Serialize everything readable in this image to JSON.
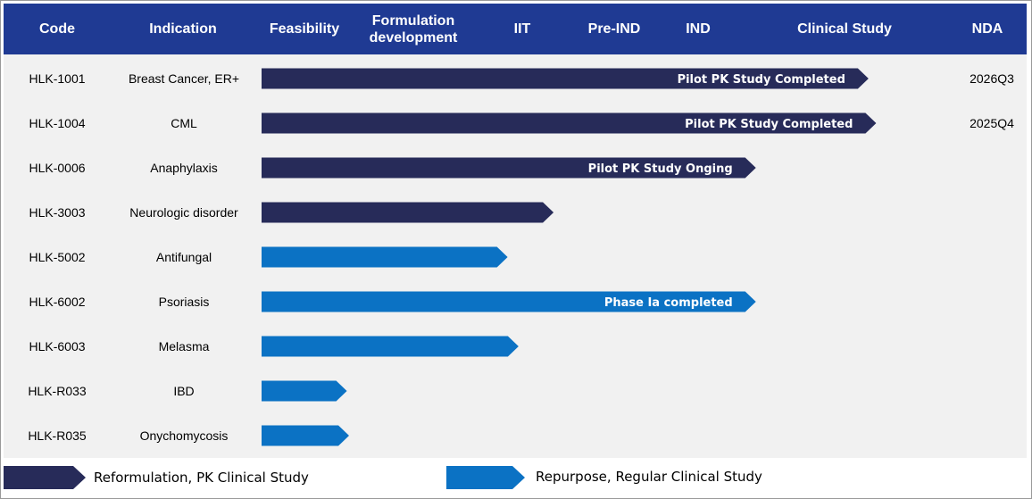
{
  "columns": [
    {
      "label": "Code"
    },
    {
      "label": "Indication"
    },
    {
      "label": "Feasibility"
    },
    {
      "label": "Formulation\ndevelopment"
    },
    {
      "label": "IIT"
    },
    {
      "label": "Pre-IND"
    },
    {
      "label": "IND"
    },
    {
      "label": "Clinical Study"
    },
    {
      "label": "NDA"
    }
  ],
  "rows": [
    {
      "code": "HLK-1001",
      "indication": "Breast Cancer, ER+",
      "nda": "2026Q3"
    },
    {
      "code": "HLK-1004",
      "indication": "CML",
      "nda": "2025Q4"
    },
    {
      "code": "HLK-0006",
      "indication": "Anaphylaxis",
      "nda": ""
    },
    {
      "code": "HLK-3003",
      "indication": "Neurologic disorder",
      "nda": ""
    },
    {
      "code": "HLK-5002",
      "indication": "Antifungal",
      "nda": ""
    },
    {
      "code": "HLK-6002",
      "indication": "Psoriasis",
      "nda": ""
    },
    {
      "code": "HLK-6003",
      "indication": "Melasma",
      "nda": ""
    },
    {
      "code": "HLK-R033",
      "indication": "IBD",
      "nda": ""
    },
    {
      "code": "HLK-R035",
      "indication": "Onychomycosis",
      "nda": ""
    }
  ],
  "legend": [
    {
      "label": "Reformulation, PK Clinical Study",
      "color": "#272b59"
    },
    {
      "label": "Repurpose, Regular Clinical Study",
      "color": "#0b72c4"
    }
  ],
  "chart_data": {
    "type": "bar",
    "orientation": "horizontal",
    "title": "",
    "stage_axis": [
      "Feasibility",
      "Formulation development",
      "IIT",
      "Pre-IND",
      "IND",
      "Clinical Study",
      "NDA"
    ],
    "series": [
      {
        "name": "Reformulation, PK Clinical Study",
        "color": "#272b59",
        "items": [
          {
            "code": "HLK-1001",
            "progress": 5.55,
            "label": "Pilot PK Study Completed"
          },
          {
            "code": "HLK-1004",
            "progress": 5.62,
            "label": "Pilot PK Study Completed"
          },
          {
            "code": "HLK-0006",
            "progress": 4.52,
            "label": "Pilot PK Study Onging"
          },
          {
            "code": "HLK-3003",
            "progress": 2.67,
            "label": ""
          }
        ]
      },
      {
        "name": "Repurpose, Regular Clinical Study",
        "color": "#0b72c4",
        "items": [
          {
            "code": "HLK-5002",
            "progress": 2.25,
            "label": ""
          },
          {
            "code": "HLK-6002",
            "progress": 4.52,
            "label": "Phase Ia completed"
          },
          {
            "code": "HLK-6003",
            "progress": 2.35,
            "label": ""
          },
          {
            "code": "HLK-R033",
            "progress": 0.78,
            "label": ""
          },
          {
            "code": "HLK-R035",
            "progress": 0.8,
            "label": ""
          }
        ]
      }
    ]
  }
}
